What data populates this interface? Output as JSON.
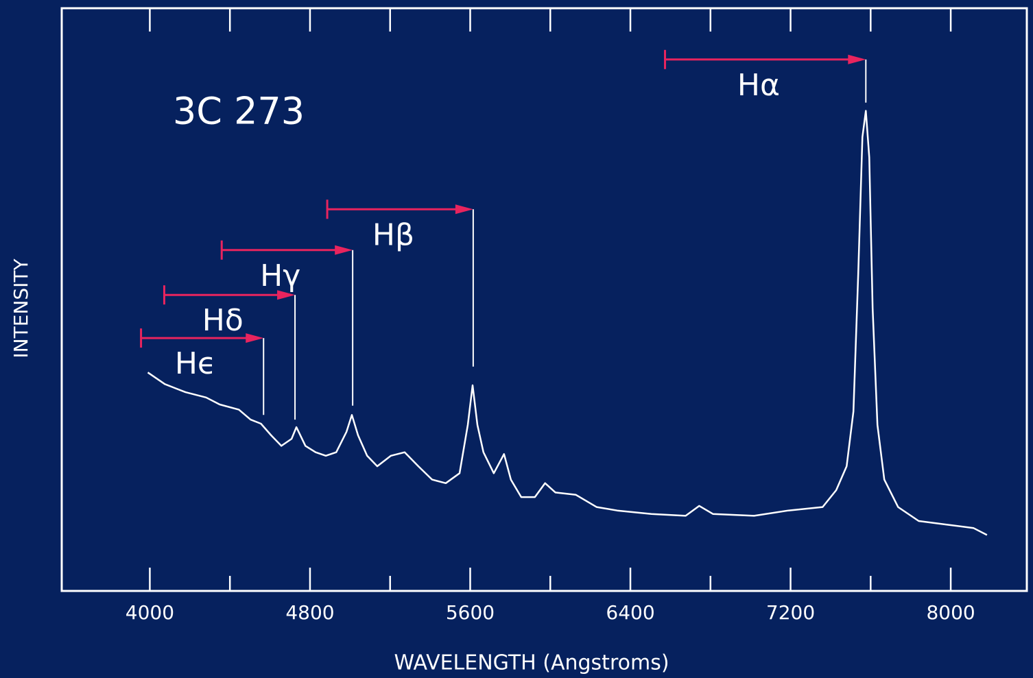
{
  "chart_data": {
    "type": "line",
    "title": "3C 273",
    "x_label": "WAVELENGTH (Angstroms)",
    "y_label": "INTENSITY",
    "x": [
      3990,
      4075,
      4178,
      4281,
      4349,
      4445,
      4503,
      4555,
      4606,
      4657,
      4708,
      4732,
      4777,
      4828,
      4879,
      4931,
      4982,
      5009,
      5040,
      5085,
      5136,
      5204,
      5273,
      5341,
      5410,
      5478,
      5547,
      5588,
      5612,
      5636,
      5666,
      5718,
      5769,
      5803,
      5855,
      5923,
      5974,
      6026,
      6128,
      6231,
      6334,
      6505,
      6676,
      6744,
      6813,
      7018,
      7189,
      7360,
      7428,
      7480,
      7514,
      7538,
      7559,
      7576,
      7593,
      7610,
      7634,
      7668,
      7737,
      7840,
      7976,
      8113,
      8181
    ],
    "values": [
      37.5,
      35.5,
      34.1,
      33.2,
      32,
      31.1,
      29.4,
      28.7,
      26.7,
      24.9,
      26.1,
      28.1,
      24.9,
      23.8,
      23.2,
      23.8,
      27.3,
      30.2,
      26.7,
      23.2,
      21.4,
      23.2,
      23.8,
      21.4,
      19.1,
      18.5,
      20.2,
      28.5,
      35.3,
      28.5,
      23.8,
      20.2,
      23.5,
      19.1,
      16.1,
      16.1,
      18.5,
      16.9,
      16.5,
      14.4,
      13.8,
      13.2,
      12.9,
      14.6,
      13.2,
      12.9,
      13.8,
      14.4,
      17.3,
      21.4,
      30.8,
      54.4,
      77.9,
      82.4,
      74.4,
      48.5,
      28.5,
      19.1,
      14.4,
      12,
      11.4,
      10.8,
      9.6
    ],
    "color": "#ffffff",
    "xlim": [
      3560,
      8380
    ],
    "ylim": [
      0,
      100
    ],
    "xticks": [
      4000,
      4800,
      5600,
      6400,
      7200,
      8000
    ],
    "xminor_ticks": [
      4400,
      5200,
      6000,
      6800,
      7600
    ],
    "annotations": [
      {
        "label": "Hα",
        "from": 6573,
        "to": 7576,
        "level": 91.2,
        "line_to": 83.8
      },
      {
        "label": "Hβ",
        "from": 4886,
        "to": 5615,
        "level": 65.5,
        "line_to": 38.5
      },
      {
        "label": "Hγ",
        "from": 4359,
        "to": 5013,
        "level": 58.5,
        "line_to": 31.8
      },
      {
        "label": "Hδ",
        "from": 4072,
        "to": 4725,
        "level": 50.8,
        "line_to": 29.4
      },
      {
        "label": "Hϵ",
        "from": 3956,
        "to": 4568,
        "level": 43.4,
        "line_to": 30.2
      }
    ],
    "annotation_color": "#e8245e"
  }
}
